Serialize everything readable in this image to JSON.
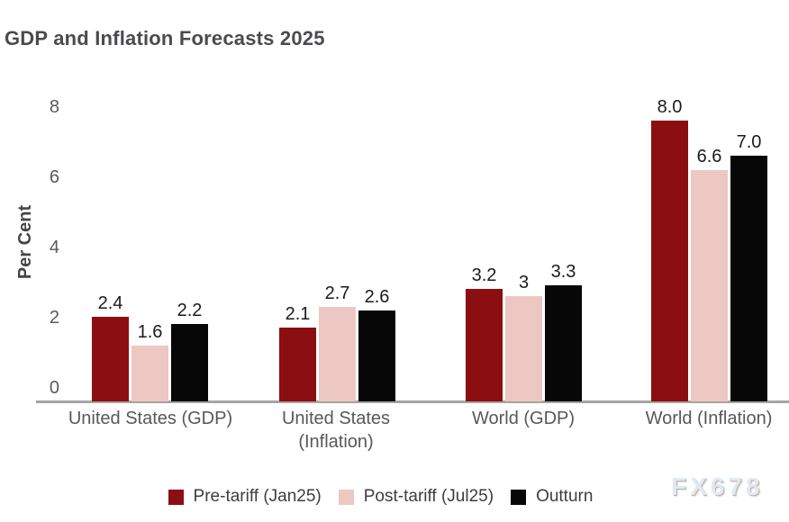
{
  "watermark": "FX678",
  "chart_data": {
    "type": "bar",
    "title": "GDP and Inflation Forecasts 2025",
    "xlabel": "",
    "ylabel": "Per Cent",
    "ylim": [
      0,
      8.6
    ],
    "yticks": [
      0,
      2,
      4,
      6,
      8
    ],
    "grid": false,
    "legend_position": "bottom",
    "categories": [
      "United States (GDP)",
      "United States\n(Inflation)",
      "World (GDP)",
      "World (Inflation)"
    ],
    "series": [
      {
        "name": "Pre-tariff (Jan25)",
        "color": "#8B0E11",
        "values": [
          2.4,
          2.1,
          3.2,
          8.0
        ],
        "labels": [
          "2.4",
          "2.1",
          "3.2",
          "8.0"
        ]
      },
      {
        "name": "Post-tariff (Jul25)",
        "color": "#EDC7C2",
        "values": [
          1.6,
          2.7,
          3.0,
          6.6
        ],
        "labels": [
          "1.6",
          "2.7",
          "3",
          "6.6"
        ]
      },
      {
        "name": "Outturn",
        "color": "#070707",
        "values": [
          2.2,
          2.6,
          3.3,
          7.0
        ],
        "labels": [
          "2.2",
          "2.6",
          "3.3",
          "7.0"
        ]
      }
    ]
  }
}
